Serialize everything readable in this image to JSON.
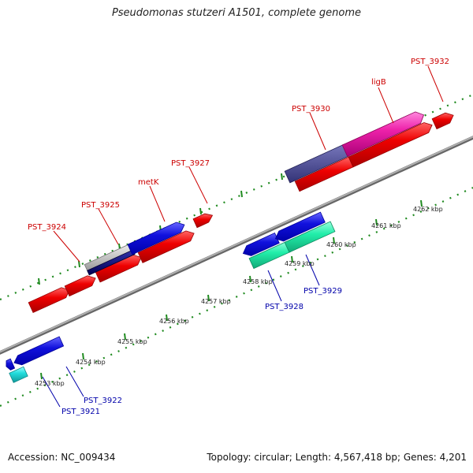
{
  "title": "Pseudomonas stutzeri A1501, complete genome",
  "footer": {
    "accession": "Accession: NC_009434",
    "summary": "Topology: circular; Length: 4,567,418 bp; Genes: 4,201"
  },
  "colors": {
    "backbone": "#8a8a8a",
    "tick": "#1f8a1f",
    "red": "#ee0000",
    "blue": "#1111dd",
    "navy": "#000077",
    "gray": "#b8b8b8",
    "mint": "#22eeaa",
    "cyan": "#22dddd",
    "purple": "#44448a",
    "magenta": "#ee22aa",
    "top_label": "#cc0000",
    "bottom_label": "#0000aa"
  },
  "kbp_labels": [
    "4253 kbp",
    "4254 kbp",
    "4255 kbp",
    "4256 kbp",
    "4257 kbp",
    "4258 kbp",
    "4259 kbp",
    "4260 kbp",
    "4261 kbp",
    "4262 kbp"
  ],
  "top_labels": [
    "PST_3924",
    "PST_3925",
    "metK",
    "PST_3927",
    "PST_3930",
    "ligB",
    "PST_3932"
  ],
  "bottom_labels": [
    "PST_3921",
    "PST_3922",
    "PST_3928",
    "PST_3929"
  ]
}
